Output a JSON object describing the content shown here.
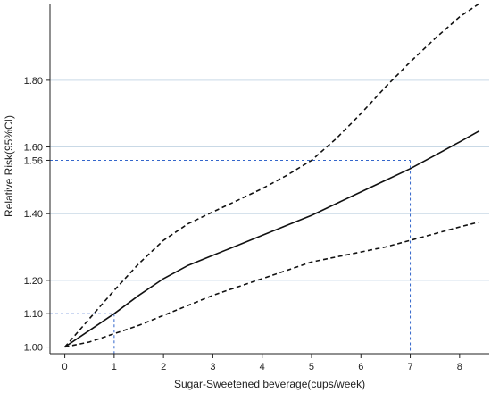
{
  "chart_data": {
    "type": "line",
    "title": "",
    "xlabel": "Sugar-Sweetened beverage(cups/week)",
    "ylabel": "Relative Risk(95%CI)",
    "xlim": [
      -0.3,
      8.6
    ],
    "ylim": [
      0.98,
      2.03
    ],
    "x_ticks": [
      0,
      1,
      2,
      3,
      4,
      5,
      6,
      7,
      8
    ],
    "x_tick_labels": [
      "0",
      "1",
      "2",
      "3",
      "4",
      "5",
      "6",
      "7",
      "8"
    ],
    "y_ticks": [
      1.0,
      1.1,
      1.2,
      1.4,
      1.56,
      1.6,
      1.8
    ],
    "y_tick_labels": [
      "1.00",
      "1.10",
      "1.20",
      "1.40",
      "1.56",
      "1.60",
      "1.80"
    ],
    "grid_y": [
      1.2,
      1.4,
      1.6,
      1.8
    ],
    "grid": true,
    "legend": "none",
    "series": [
      {
        "style": "solid",
        "color": "#111111",
        "x": [
          0,
          0.5,
          1,
          1.5,
          2,
          2.5,
          3,
          3.5,
          4,
          4.5,
          5,
          5.5,
          6,
          6.5,
          7,
          7.5,
          8,
          8.4
        ],
        "y": [
          1.0,
          1.05,
          1.1,
          1.155,
          1.205,
          1.245,
          1.275,
          1.305,
          1.335,
          1.365,
          1.395,
          1.43,
          1.465,
          1.5,
          1.535,
          1.575,
          1.615,
          1.648
        ]
      },
      {
        "style": "dashed",
        "color": "#111111",
        "x": [
          0,
          0.5,
          1,
          1.5,
          2,
          2.5,
          3,
          3.5,
          4,
          4.5,
          5,
          5.5,
          6,
          6.5,
          7,
          7.5,
          8,
          8.4
        ],
        "y": [
          1.0,
          1.085,
          1.17,
          1.25,
          1.32,
          1.37,
          1.405,
          1.44,
          1.475,
          1.515,
          1.56,
          1.625,
          1.7,
          1.78,
          1.855,
          1.925,
          1.99,
          2.03
        ]
      },
      {
        "style": "dashed",
        "color": "#111111",
        "x": [
          0,
          0.5,
          1,
          1.5,
          2,
          2.5,
          3,
          3.5,
          4,
          4.5,
          5,
          5.5,
          6,
          6.5,
          7,
          7.5,
          8,
          8.4
        ],
        "y": [
          1.0,
          1.015,
          1.04,
          1.065,
          1.095,
          1.125,
          1.155,
          1.18,
          1.205,
          1.23,
          1.255,
          1.27,
          1.285,
          1.3,
          1.32,
          1.34,
          1.36,
          1.375
        ]
      }
    ],
    "reference_lines": [
      {
        "x": 1,
        "y": 1.1,
        "color": "#3366cc",
        "style": "dashed"
      },
      {
        "x": 7,
        "y": 1.56,
        "color": "#3366cc",
        "style": "dashed"
      }
    ]
  }
}
